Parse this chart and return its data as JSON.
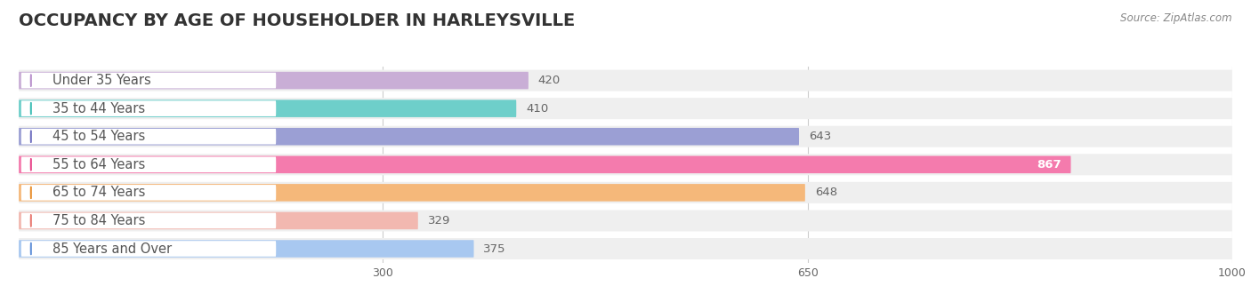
{
  "title": "OCCUPANCY BY AGE OF HOUSEHOLDER IN HARLEYSVILLE",
  "source": "Source: ZipAtlas.com",
  "categories": [
    "Under 35 Years",
    "35 to 44 Years",
    "45 to 54 Years",
    "55 to 64 Years",
    "65 to 74 Years",
    "75 to 84 Years",
    "85 Years and Over"
  ],
  "values": [
    420,
    410,
    643,
    867,
    648,
    329,
    375
  ],
  "bar_colors": [
    "#c9aed6",
    "#6ecfca",
    "#9b9fd4",
    "#f47bad",
    "#f5b87a",
    "#f2b8b0",
    "#a8c8f0"
  ],
  "dot_colors": [
    "#b890cc",
    "#3dbdb5",
    "#7070c0",
    "#e8458a",
    "#e89030",
    "#e87870",
    "#6090d8"
  ],
  "bar_bg_color": "#efefef",
  "label_color": "#555555",
  "value_color_inside": "#ffffff",
  "value_color_outside": "#666666",
  "xlim": [
    0,
    1000
  ],
  "xticks": [
    300,
    650,
    1000
  ],
  "title_fontsize": 14,
  "label_fontsize": 10.5,
  "value_fontsize": 9.5,
  "source_fontsize": 8.5,
  "bg_color": "#ffffff",
  "grid_color": "#cccccc"
}
